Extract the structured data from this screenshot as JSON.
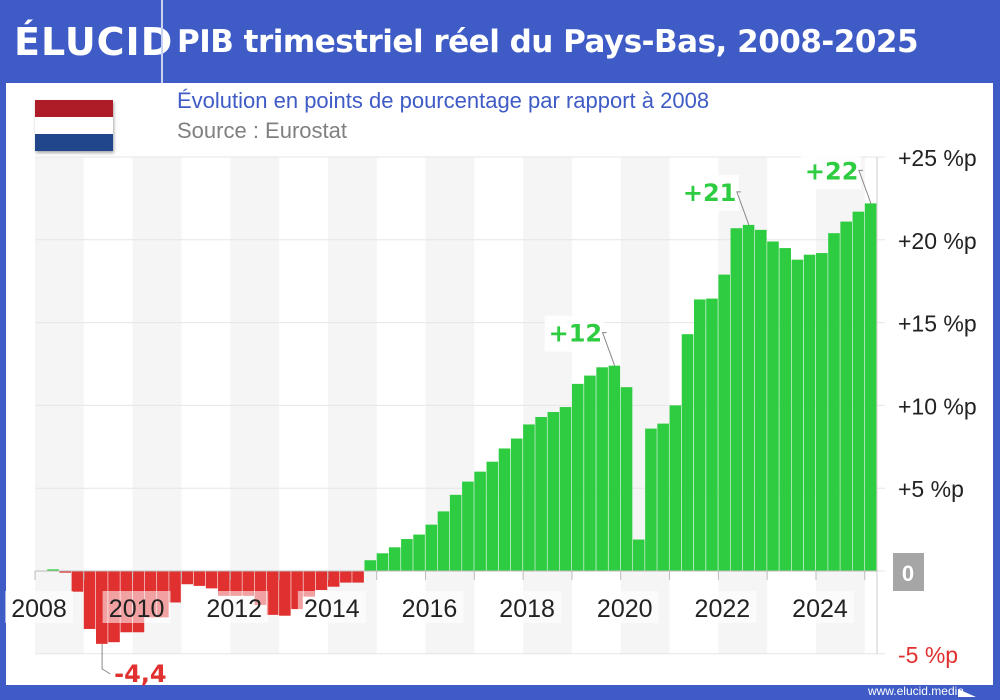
{
  "header": {
    "logo": "ÉLUCID",
    "title": "PIB trimestriel réel du Pays-Bas, 2008-2025"
  },
  "subtitle": "Évolution en points de pourcentage par rapport à 2008",
  "source": "Source : Eurostat",
  "footer": "www.elucid.media",
  "flag_colors": [
    "#ae1c28",
    "#ffffff",
    "#21468b"
  ],
  "colors": {
    "brand": "#3f5bc6",
    "positive": "#2ecc40",
    "negative": "#e03030",
    "zero_badge": "#a6a6a6"
  },
  "chart_data": {
    "type": "bar",
    "title": "PIB trimestriel réel du Pays-Bas, 2008-2025",
    "subtitle": "Évolution en points de pourcentage par rapport à 2008",
    "x_start": "2008-Q1",
    "x_end": "2025-Q1",
    "frequency": "quarterly",
    "values": [
      0.0,
      0.1,
      -0.1,
      -1.25,
      -3.5,
      -4.4,
      -4.3,
      -3.7,
      -3.7,
      -2.8,
      -2.8,
      -1.9,
      -0.8,
      -0.9,
      -1.05,
      -1.5,
      -1.5,
      -1.5,
      -2.05,
      -2.65,
      -2.7,
      -2.3,
      -1.55,
      -1.15,
      -0.95,
      -0.7,
      -0.7,
      0.65,
      1.07,
      1.43,
      1.93,
      2.2,
      2.8,
      3.6,
      4.6,
      5.4,
      6.0,
      6.6,
      7.4,
      8.0,
      8.85,
      9.3,
      9.6,
      9.9,
      11.3,
      11.8,
      12.3,
      12.4,
      11.1,
      1.9,
      8.6,
      8.9,
      10.0,
      14.3,
      16.4,
      16.45,
      17.9,
      20.7,
      20.9,
      20.6,
      19.9,
      19.5,
      18.8,
      19.1,
      19.2,
      20.4,
      21.1,
      21.7,
      22.2
    ],
    "x_tick_labels": [
      "2008",
      "2010",
      "2012",
      "2014",
      "2016",
      "2018",
      "2020",
      "2022",
      "2024"
    ],
    "y_tick_labels": [
      "-5 %p",
      "0",
      "+5 %p",
      "+10 %p",
      "+15 %p",
      "+20 %p",
      "+25 %p"
    ],
    "y_ticks": [
      -5,
      0,
      5,
      10,
      15,
      20,
      25
    ],
    "ylim": [
      -5,
      25
    ],
    "annotations": [
      {
        "index": 5,
        "text": "-4,4"
      },
      {
        "index": 47,
        "text": "+12"
      },
      {
        "index": 58,
        "text": "+21"
      },
      {
        "index": 68,
        "text": "+22"
      }
    ],
    "grid": true,
    "axis_position": "right"
  }
}
